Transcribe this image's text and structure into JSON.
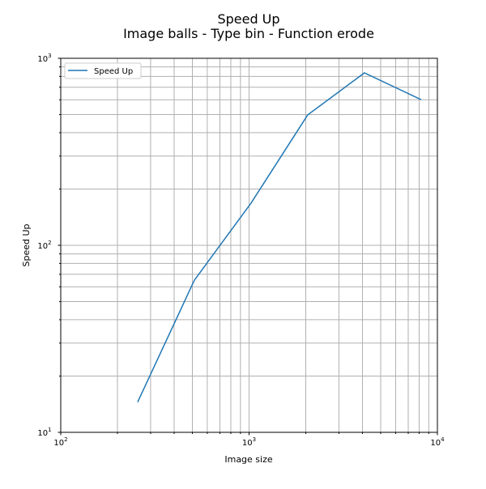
{
  "chart_data": {
    "type": "line",
    "title": "Speed Up",
    "subtitle": "Image balls - Type bin - Function erode",
    "xlabel": "Image size",
    "ylabel": "Speed Up",
    "xscale": "log",
    "yscale": "log",
    "xlim": [
      100,
      10000
    ],
    "ylim": [
      10,
      1000
    ],
    "xticks": [
      {
        "v": 100,
        "base": "10",
        "exp": "2"
      },
      {
        "v": 1000,
        "base": "10",
        "exp": "3"
      },
      {
        "v": 10000,
        "base": "10",
        "exp": "4"
      }
    ],
    "yticks": [
      {
        "v": 10,
        "base": "10",
        "exp": "1"
      },
      {
        "v": 100,
        "base": "10",
        "exp": "2"
      },
      {
        "v": 1000,
        "base": "10",
        "exp": "3"
      }
    ],
    "grid": true,
    "legend_placement": "top-left",
    "series": [
      {
        "name": "Speed Up",
        "color": "#1f77b4",
        "x": [
          256,
          512,
          1024,
          2048,
          4096,
          8192
        ],
        "y": [
          14.5,
          65,
          168,
          498,
          836,
          601
        ]
      }
    ]
  }
}
